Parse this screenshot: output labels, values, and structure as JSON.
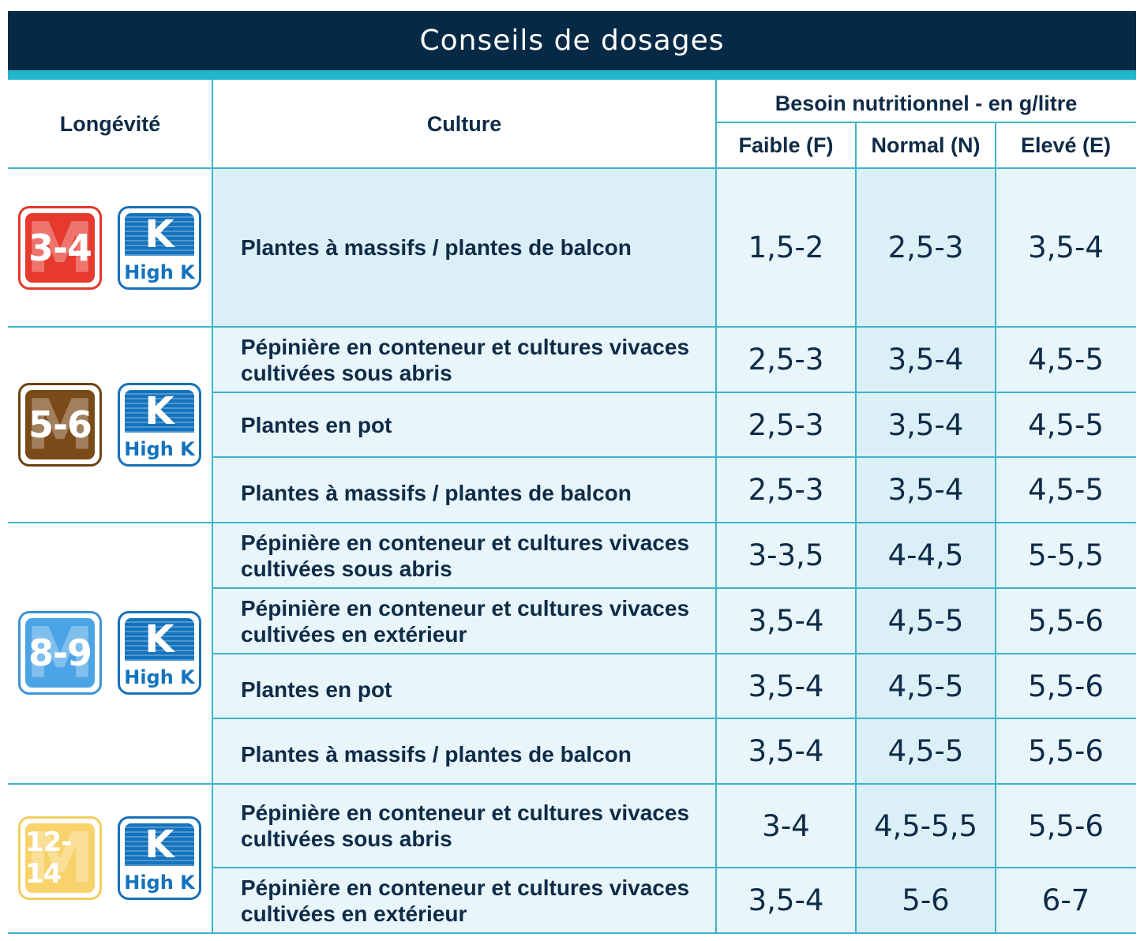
{
  "title": "Conseils de dosages",
  "headers": {
    "longevite": "Longévité",
    "culture": "Culture",
    "besoin": "Besoin nutritionnel - en g/litre",
    "faible": "Faible (F)",
    "normal": "Normal (N)",
    "eleve": "Elevé (E)"
  },
  "high_k_label": "High K",
  "k_letter": "K",
  "m_letter": "M",
  "groups": [
    {
      "badge": "3-4",
      "color": "#e63a2e",
      "rows": [
        {
          "culture": "Plantes à massifs / plantes de balcon",
          "f": "1,5-2",
          "n": "2,5-3",
          "e": "3,5-4"
        }
      ]
    },
    {
      "badge": "5-6",
      "color": "#7a4a18",
      "rows": [
        {
          "culture": "Pépinière en conteneur et cultures vivaces cultivées sous abris",
          "f": "2,5-3",
          "n": "3,5-4",
          "e": "4,5-5"
        },
        {
          "culture": "Plantes en pot",
          "f": "2,5-3",
          "n": "3,5-4",
          "e": "4,5-5"
        },
        {
          "culture": "Plantes à massifs / plantes de balcon",
          "f": "2,5-3",
          "n": "3,5-4",
          "e": "4,5-5"
        }
      ]
    },
    {
      "badge": "8-9",
      "color": "#4ba4e6",
      "rows": [
        {
          "culture": "Pépinière en conteneur et cultures vivaces cultivées sous abris",
          "f": "3-3,5",
          "n": "4-4,5",
          "e": "5-5,5"
        },
        {
          "culture": "Pépinière en conteneur et cultures vivaces cultivées en extérieur",
          "f": "3,5-4",
          "n": "4,5-5",
          "e": "5,5-6"
        },
        {
          "culture": "Plantes en pot",
          "f": "3,5-4",
          "n": "4,5-5",
          "e": "5,5-6"
        },
        {
          "culture": "Plantes à massifs / plantes de balcon",
          "f": "3,5-4",
          "n": "4,5-5",
          "e": "5,5-6"
        }
      ]
    },
    {
      "badge": "12-14",
      "color": "#f8d26a",
      "rows": [
        {
          "culture": "Pépinière en conteneur et cultures vivaces cultivées sous abris",
          "f": "3-4",
          "n": "4,5-5,5",
          "e": "5,5-6"
        },
        {
          "culture": "Pépinière en conteneur et cultures vivaces cultivées en extérieur",
          "f": "3,5-4",
          "n": "5-6",
          "e": "6-7"
        }
      ]
    }
  ]
}
